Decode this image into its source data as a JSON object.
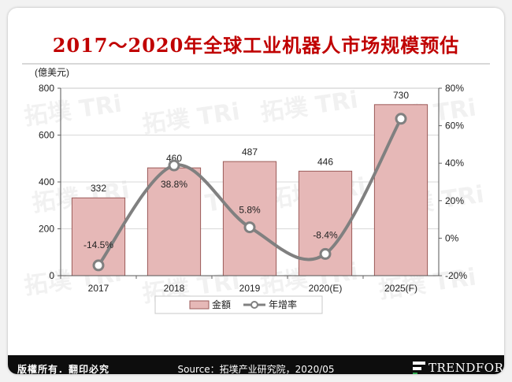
{
  "title": "2017～2020年全球工业机器人市场规模预估",
  "footer": {
    "copyright": "版權所有．翻印必究",
    "source": "Source：拓墣产业研究院，2020/05",
    "brand": "TRENDFORCE"
  },
  "watermark": "拓墣 TRi",
  "colors": {
    "bar": "#e6b8b7",
    "bar_stroke": "#9b5a58",
    "line": "#808080",
    "title": "#c00000"
  },
  "chart_data": {
    "type": "bar",
    "categories": [
      "2017",
      "2018",
      "2019",
      "2020(E)",
      "2025(F)"
    ],
    "y_unit_label": "(億美元)",
    "ylim": [
      0,
      800
    ],
    "y_ticks": [
      "0",
      "200",
      "400",
      "600",
      "800"
    ],
    "y2lim": [
      -20,
      80
    ],
    "y2_ticks": [
      "-20%",
      "0%",
      "20%",
      "40%",
      "60%",
      "80%"
    ],
    "series": [
      {
        "name": "金額",
        "type": "bar",
        "values": [
          332,
          460,
          487,
          446,
          730
        ],
        "labels": [
          "332",
          "460",
          "487",
          "446",
          "730"
        ]
      },
      {
        "name": "年增率",
        "type": "line",
        "axis": "right",
        "values": [
          -14.5,
          38.8,
          5.8,
          -8.4,
          63.7
        ],
        "labels": [
          "-14.5%",
          "38.8%",
          "5.8%",
          "-8.4%",
          ""
        ]
      }
    ],
    "grid": true,
    "legend": "bottom"
  }
}
